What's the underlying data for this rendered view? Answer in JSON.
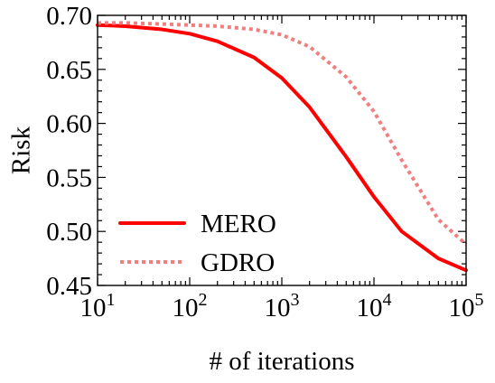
{
  "chart_data": {
    "type": "line",
    "xscale": "log",
    "xlim": [
      10,
      100000
    ],
    "ylim": [
      0.45,
      0.7
    ],
    "xlabel": "# of iterations",
    "ylabel": "Risk",
    "x_ticks": [
      {
        "value": 10,
        "base": "10",
        "exp": "1"
      },
      {
        "value": 100,
        "base": "10",
        "exp": "2"
      },
      {
        "value": 1000,
        "base": "10",
        "exp": "3"
      },
      {
        "value": 10000,
        "base": "10",
        "exp": "4"
      },
      {
        "value": 100000,
        "base": "10",
        "exp": "5"
      }
    ],
    "y_ticks": [
      {
        "value": 0.45,
        "label": "0.45"
      },
      {
        "value": 0.5,
        "label": "0.50"
      },
      {
        "value": 0.55,
        "label": "0.55"
      },
      {
        "value": 0.6,
        "label": "0.60"
      },
      {
        "value": 0.65,
        "label": "0.65"
      },
      {
        "value": 0.7,
        "label": "0.70"
      }
    ],
    "grid": false,
    "legend_position": "lower-left",
    "series": [
      {
        "name": "MERO",
        "color": "#ff0000",
        "style": "solid",
        "x": [
          10,
          20,
          50,
          100,
          200,
          500,
          1000,
          2000,
          5000,
          10000,
          20000,
          50000,
          100000
        ],
        "y": [
          0.691,
          0.69,
          0.687,
          0.683,
          0.676,
          0.661,
          0.642,
          0.615,
          0.569,
          0.532,
          0.5,
          0.475,
          0.464
        ]
      },
      {
        "name": "GDRO",
        "color": "#f08080",
        "style": "dotted",
        "x": [
          10,
          20,
          50,
          100,
          200,
          500,
          1000,
          2000,
          5000,
          10000,
          20000,
          50000,
          100000
        ],
        "y": [
          0.693,
          0.693,
          0.692,
          0.691,
          0.69,
          0.687,
          0.682,
          0.671,
          0.643,
          0.611,
          0.566,
          0.511,
          0.488
        ]
      }
    ]
  }
}
